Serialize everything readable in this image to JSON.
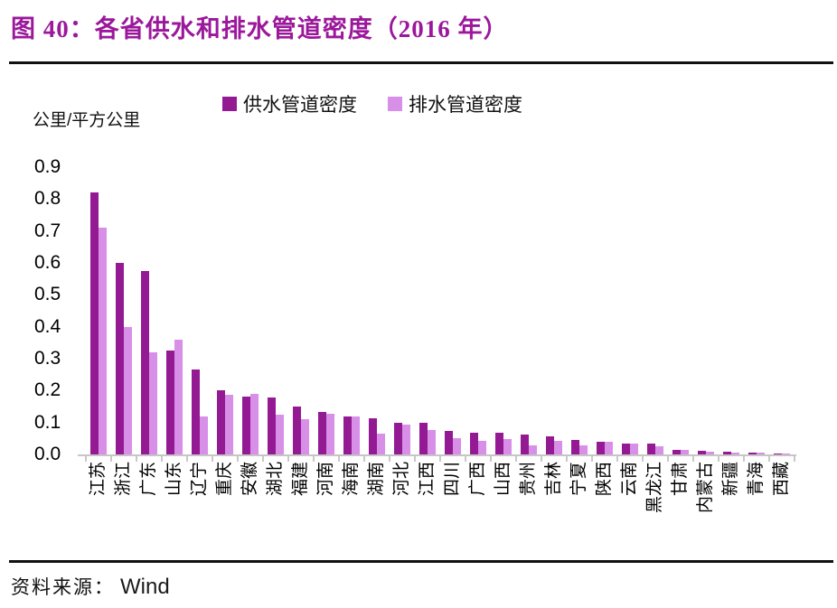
{
  "title": "图 40：各省供水和排水管道密度（2016 年）",
  "colors": {
    "title": "#9B189B",
    "supply_series": "#941A93",
    "drainage_series": "#D88FE8",
    "axis": "#C6C6C6",
    "rule": "#111111"
  },
  "source": {
    "label": "资料来源：",
    "value": "Wind"
  },
  "chart_data": {
    "type": "bar",
    "title": "各省供水和排水管道密度（2016 年）",
    "ylabel": "公里/平方公里",
    "xlabel": "",
    "ylim": [
      0,
      0.9
    ],
    "yticks": [
      0.9,
      0.8,
      0.7,
      0.6,
      0.5,
      0.4,
      0.3,
      0.2,
      0.1,
      0.0
    ],
    "grid": false,
    "legend_position": "top",
    "categories": [
      "江苏",
      "浙江",
      "广东",
      "山东",
      "辽宁",
      "重庆",
      "安徽",
      "湖北",
      "福建",
      "河南",
      "海南",
      "湖南",
      "河北",
      "江西",
      "四川",
      "广西",
      "山西",
      "贵州",
      "吉林",
      "宁夏",
      "陕西",
      "云南",
      "黑龙江",
      "甘肃",
      "内蒙古",
      "新疆",
      "青海",
      "西藏"
    ],
    "series": [
      {
        "name": "供水管道密度",
        "color": "#941A93",
        "values": [
          0.82,
          0.6,
          0.575,
          0.325,
          0.265,
          0.2,
          0.18,
          0.178,
          0.15,
          0.133,
          0.12,
          0.113,
          0.1,
          0.099,
          0.075,
          0.069,
          0.068,
          0.061,
          0.057,
          0.046,
          0.04,
          0.035,
          0.034,
          0.015,
          0.01,
          0.009,
          0.006,
          0.002
        ]
      },
      {
        "name": "排水管道密度",
        "color": "#D88FE8",
        "values": [
          0.71,
          0.4,
          0.32,
          0.36,
          0.12,
          0.188,
          0.19,
          0.125,
          0.11,
          0.127,
          0.118,
          0.064,
          0.094,
          0.077,
          0.052,
          0.043,
          0.049,
          0.028,
          0.042,
          0.029,
          0.041,
          0.034,
          0.025,
          0.014,
          0.008,
          0.006,
          0.005,
          0.001
        ]
      }
    ]
  }
}
